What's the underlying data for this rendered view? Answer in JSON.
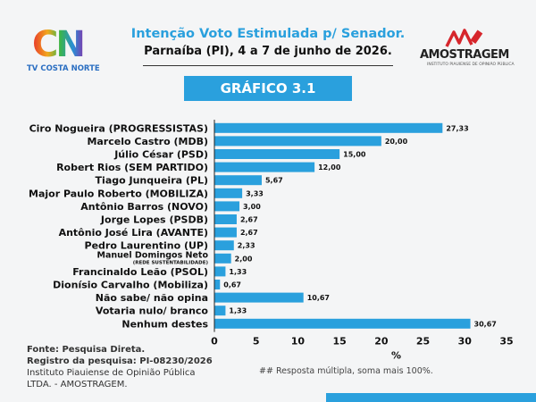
{
  "header": {
    "logo_left_text": "CN",
    "logo_left_sub": "TV COSTA NORTE",
    "title": "Intenção Voto Estimulada p/ Senador.",
    "subtitle": "Parnaíba (PI), 4 a 7 de junho de 2026.",
    "logo_right_text": "AMOSTRAGEM",
    "logo_right_sub": "INSTITUTO PIAUIENSE DE OPINIÃO PÚBLICA",
    "banner": "GRÁFICO 3.1"
  },
  "chart_data": {
    "type": "bar",
    "orientation": "horizontal",
    "categories": [
      "Ciro Nogueira (PROGRESSISTAS)",
      "Marcelo Castro (MDB)",
      "Júlio César (PSD)",
      "Robert Rios (SEM PARTIDO)",
      "Tiago Junqueira (PL)",
      "Major Paulo Roberto (MOBILIZA)",
      "Antônio Barros (NOVO)",
      "Jorge Lopes (PSDB)",
      "Antônio José Lira (AVANTE)",
      "Pedro Laurentino (UP)",
      "Manuel Domingos Neto",
      "Francinaldo Leão (PSOL)",
      "Dionísio Carvalho (Mobiliza)",
      "Não sabe/ não opina",
      "Votaria nulo/ branco",
      "Nenhum destes"
    ],
    "category_notes": [
      "",
      "",
      "",
      "",
      "",
      "",
      "",
      "",
      "",
      "",
      "(REDE SUSTENTABILIDADE)",
      "",
      "",
      "",
      "",
      ""
    ],
    "values": [
      27.33,
      20.0,
      15.0,
      12.0,
      5.67,
      3.33,
      3.0,
      2.67,
      2.67,
      2.33,
      2.0,
      1.33,
      0.67,
      10.67,
      1.33,
      30.67
    ],
    "value_labels": [
      "27,33",
      "20,00",
      "15,00",
      "12,00",
      "5,67",
      "3,33",
      "3,00",
      "2,67",
      "2,67",
      "2,33",
      "2,00",
      "1,33",
      "0,67",
      "10,67",
      "1,33",
      "30,67"
    ],
    "xlim": [
      0,
      35
    ],
    "xticks": [
      0,
      5,
      10,
      15,
      20,
      25,
      30,
      35
    ],
    "xlabel": "%",
    "grid": false,
    "bar_color": "#2aa0dd"
  },
  "footer": {
    "source": "Fonte: Pesquisa Direta.",
    "registry": "Registro da pesquisa: PI-08230/2026",
    "institute1": "Instituto Piauiense de Opinião Pública",
    "institute2": "LTDA. - AMOSTRAGEM.",
    "note": "## Resposta múltipla, soma mais 100%."
  }
}
